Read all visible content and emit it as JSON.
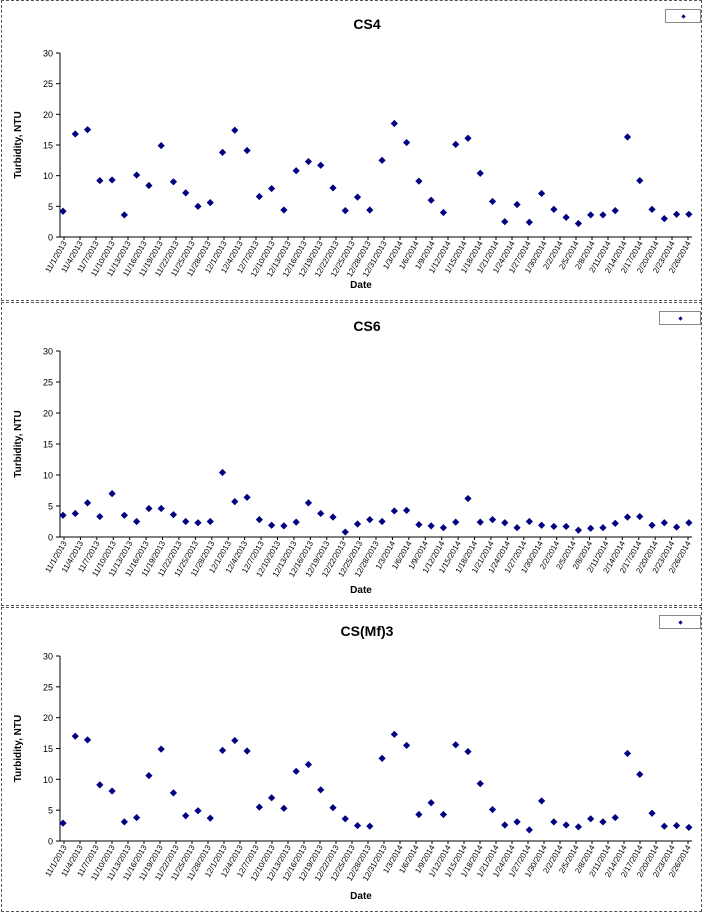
{
  "chart_data": [
    {
      "type": "scatter",
      "title": "CS4",
      "xlabel": "Date",
      "ylabel": "Turbidity, NTU",
      "ylim": [
        0,
        30
      ],
      "yticks": [
        0,
        5,
        10,
        15,
        20,
        25,
        30
      ],
      "grid": false,
      "legend_placement": "top-right",
      "marker_color": "#000080",
      "categories": [
        "11/1/2013",
        "11/4/2013",
        "11/7/2013",
        "11/10/2013",
        "11/13/2013",
        "11/16/2013",
        "11/19/2013",
        "11/22/2013",
        "11/25/2013",
        "11/28/2013",
        "12/1/2013",
        "12/4/2013",
        "12/7/2013",
        "12/10/2013",
        "12/13/2013",
        "12/16/2013",
        "12/19/2013",
        "12/22/2013",
        "12/25/2013",
        "12/28/2013",
        "12/31/2013",
        "1/3/2014",
        "1/6/2014",
        "1/9/2014",
        "1/12/2014",
        "1/15/2014",
        "1/18/2014",
        "1/21/2014",
        "1/24/2014",
        "1/27/2014",
        "1/30/2014",
        "2/2/2014",
        "2/5/2014",
        "2/8/2014",
        "2/11/2014",
        "2/14/2014",
        "2/17/2014",
        "2/20/2014",
        "2/23/2014",
        "2/26/2014"
      ],
      "points": [
        [
          0,
          4.2
        ],
        [
          1,
          16.8
        ],
        [
          2,
          17.5
        ],
        [
          3,
          9.2
        ],
        [
          4,
          9.3
        ],
        [
          5,
          3.6
        ],
        [
          6,
          10.1
        ],
        [
          7,
          8.4
        ],
        [
          8,
          14.9
        ],
        [
          9,
          9.0
        ],
        [
          10,
          7.2
        ],
        [
          11,
          5.0
        ],
        [
          12,
          5.6
        ],
        [
          13,
          13.8
        ],
        [
          14,
          17.4
        ],
        [
          15,
          14.1
        ],
        [
          16,
          6.6
        ],
        [
          17,
          7.9
        ],
        [
          18,
          4.4
        ],
        [
          19,
          10.8
        ],
        [
          20,
          12.3
        ],
        [
          21,
          11.7
        ],
        [
          22,
          8.0
        ],
        [
          23,
          4.3
        ],
        [
          24,
          6.5
        ],
        [
          25,
          4.4
        ],
        [
          26,
          12.5
        ],
        [
          27,
          18.5
        ],
        [
          28,
          15.4
        ],
        [
          29,
          9.1
        ],
        [
          30,
          6.0
        ],
        [
          31,
          4.0
        ],
        [
          32,
          15.1
        ],
        [
          33,
          16.1
        ],
        [
          34,
          10.4
        ],
        [
          35,
          5.8
        ],
        [
          36,
          2.5
        ],
        [
          37,
          5.3
        ],
        [
          38,
          2.4
        ],
        [
          39,
          7.1
        ],
        [
          40,
          4.5
        ],
        [
          41,
          3.2
        ],
        [
          42,
          2.2
        ],
        [
          43,
          3.6
        ],
        [
          44,
          3.6
        ],
        [
          45,
          4.3
        ],
        [
          46,
          16.3
        ],
        [
          47,
          9.2
        ],
        [
          48,
          4.5
        ],
        [
          49,
          3.0
        ],
        [
          50,
          3.7
        ],
        [
          51,
          3.7
        ]
      ]
    },
    {
      "type": "scatter",
      "title": "CS6",
      "xlabel": "Date",
      "ylabel": "Turbidity, NTU",
      "ylim": [
        0,
        30
      ],
      "yticks": [
        0,
        5,
        10,
        15,
        20,
        25,
        30
      ],
      "grid": false,
      "legend_placement": "top-right",
      "marker_color": "#000080",
      "categories": [
        "11/1/2013",
        "11/4/2013",
        "11/7/2013",
        "11/10/2013",
        "11/13/2013",
        "11/16/2013",
        "11/19/2013",
        "11/22/2013",
        "11/25/2013",
        "11/28/2013",
        "12/1/2013",
        "12/4/2013",
        "12/7/2013",
        "12/10/2013",
        "12/13/2013",
        "12/16/2013",
        "12/19/2013",
        "12/22/2013",
        "12/25/2013",
        "12/28/2013",
        "1/3/2014",
        "1/6/2014",
        "1/9/2014",
        "1/12/2014",
        "1/15/2014",
        "1/18/2014",
        "1/21/2014",
        "1/24/2014",
        "1/27/2014",
        "1/30/2014",
        "2/2/2014",
        "2/5/2014",
        "2/8/2014",
        "2/11/2014",
        "2/14/2014",
        "2/17/2014",
        "2/20/2014",
        "2/23/2014",
        "2/26/2014"
      ],
      "points": [
        [
          0,
          3.5
        ],
        [
          1,
          3.8
        ],
        [
          2,
          5.5
        ],
        [
          3,
          3.3
        ],
        [
          4,
          7.0
        ],
        [
          5,
          3.5
        ],
        [
          6,
          2.5
        ],
        [
          7,
          4.6
        ],
        [
          8,
          4.6
        ],
        [
          9,
          3.6
        ],
        [
          10,
          2.5
        ],
        [
          11,
          2.3
        ],
        [
          12,
          2.5
        ],
        [
          13,
          10.4
        ],
        [
          14,
          5.7
        ],
        [
          15,
          6.4
        ],
        [
          16,
          2.8
        ],
        [
          17,
          1.9
        ],
        [
          18,
          1.8
        ],
        [
          19,
          2.4
        ],
        [
          20,
          5.5
        ],
        [
          21,
          3.8
        ],
        [
          22,
          3.2
        ],
        [
          23,
          0.8
        ],
        [
          24,
          2.1
        ],
        [
          25,
          2.8
        ],
        [
          26,
          2.5
        ],
        [
          27,
          4.2
        ],
        [
          28,
          4.3
        ],
        [
          29,
          2.0
        ],
        [
          30,
          1.8
        ],
        [
          31,
          1.5
        ],
        [
          32,
          2.4
        ],
        [
          33,
          6.2
        ],
        [
          34,
          2.4
        ],
        [
          35,
          2.8
        ],
        [
          36,
          2.3
        ],
        [
          37,
          1.5
        ],
        [
          38,
          2.5
        ],
        [
          39,
          1.9
        ],
        [
          40,
          1.7
        ],
        [
          41,
          1.7
        ],
        [
          42,
          1.1
        ],
        [
          43,
          1.4
        ],
        [
          44,
          1.5
        ],
        [
          45,
          2.2
        ],
        [
          46,
          3.2
        ],
        [
          47,
          3.3
        ],
        [
          48,
          1.9
        ],
        [
          49,
          2.3
        ],
        [
          50,
          1.6
        ],
        [
          51,
          2.3
        ]
      ]
    },
    {
      "type": "scatter",
      "title": "CS(Mf)3",
      "xlabel": "Date",
      "ylabel": "Turbidity, NTU",
      "ylim": [
        0,
        30
      ],
      "yticks": [
        0,
        5,
        10,
        15,
        20,
        25,
        30
      ],
      "grid": false,
      "legend_placement": "top-right",
      "marker_color": "#000080",
      "categories": [
        "11/1/2013",
        "11/4/2013",
        "11/7/2013",
        "11/10/2013",
        "11/13/2013",
        "11/16/2013",
        "11/19/2013",
        "11/22/2013",
        "11/25/2013",
        "11/28/2013",
        "12/1/2013",
        "12/4/2013",
        "12/7/2013",
        "12/10/2013",
        "12/13/2013",
        "12/16/2013",
        "12/19/2013",
        "12/22/2013",
        "12/25/2013",
        "12/28/2013",
        "12/31/2013",
        "1/3/2014",
        "1/6/2014",
        "1/9/2014",
        "1/12/2014",
        "1/15/2014",
        "1/18/2014",
        "1/21/2014",
        "1/24/2014",
        "1/27/2014",
        "1/30/2014",
        "2/2/2014",
        "2/5/2014",
        "2/8/2014",
        "2/11/2014",
        "2/14/2014",
        "2/17/2014",
        "2/20/2014",
        "2/23/2014",
        "2/26/2014"
      ],
      "points": [
        [
          0,
          2.9
        ],
        [
          1,
          17.0
        ],
        [
          2,
          16.4
        ],
        [
          3,
          9.1
        ],
        [
          4,
          8.1
        ],
        [
          5,
          3.1
        ],
        [
          6,
          3.8
        ],
        [
          7,
          10.6
        ],
        [
          8,
          14.9
        ],
        [
          9,
          7.8
        ],
        [
          10,
          4.1
        ],
        [
          11,
          4.9
        ],
        [
          12,
          3.7
        ],
        [
          13,
          14.7
        ],
        [
          14,
          16.3
        ],
        [
          15,
          14.6
        ],
        [
          16,
          5.5
        ],
        [
          17,
          7.0
        ],
        [
          18,
          5.3
        ],
        [
          19,
          11.3
        ],
        [
          20,
          12.4
        ],
        [
          21,
          8.3
        ],
        [
          22,
          5.4
        ],
        [
          23,
          3.6
        ],
        [
          24,
          2.5
        ],
        [
          25,
          2.4
        ],
        [
          26,
          13.4
        ],
        [
          27,
          17.3
        ],
        [
          28,
          15.5
        ],
        [
          29,
          4.3
        ],
        [
          30,
          6.2
        ],
        [
          31,
          4.3
        ],
        [
          32,
          15.6
        ],
        [
          33,
          14.5
        ],
        [
          34,
          9.3
        ],
        [
          35,
          5.1
        ],
        [
          36,
          2.6
        ],
        [
          37,
          3.1
        ],
        [
          38,
          1.8
        ],
        [
          39,
          6.5
        ],
        [
          40,
          3.1
        ],
        [
          41,
          2.6
        ],
        [
          42,
          2.3
        ],
        [
          43,
          3.6
        ],
        [
          44,
          3.1
        ],
        [
          45,
          3.8
        ],
        [
          46,
          14.2
        ],
        [
          47,
          10.8
        ],
        [
          48,
          4.5
        ],
        [
          49,
          2.4
        ],
        [
          50,
          2.5
        ],
        [
          51,
          2.2
        ]
      ]
    }
  ]
}
